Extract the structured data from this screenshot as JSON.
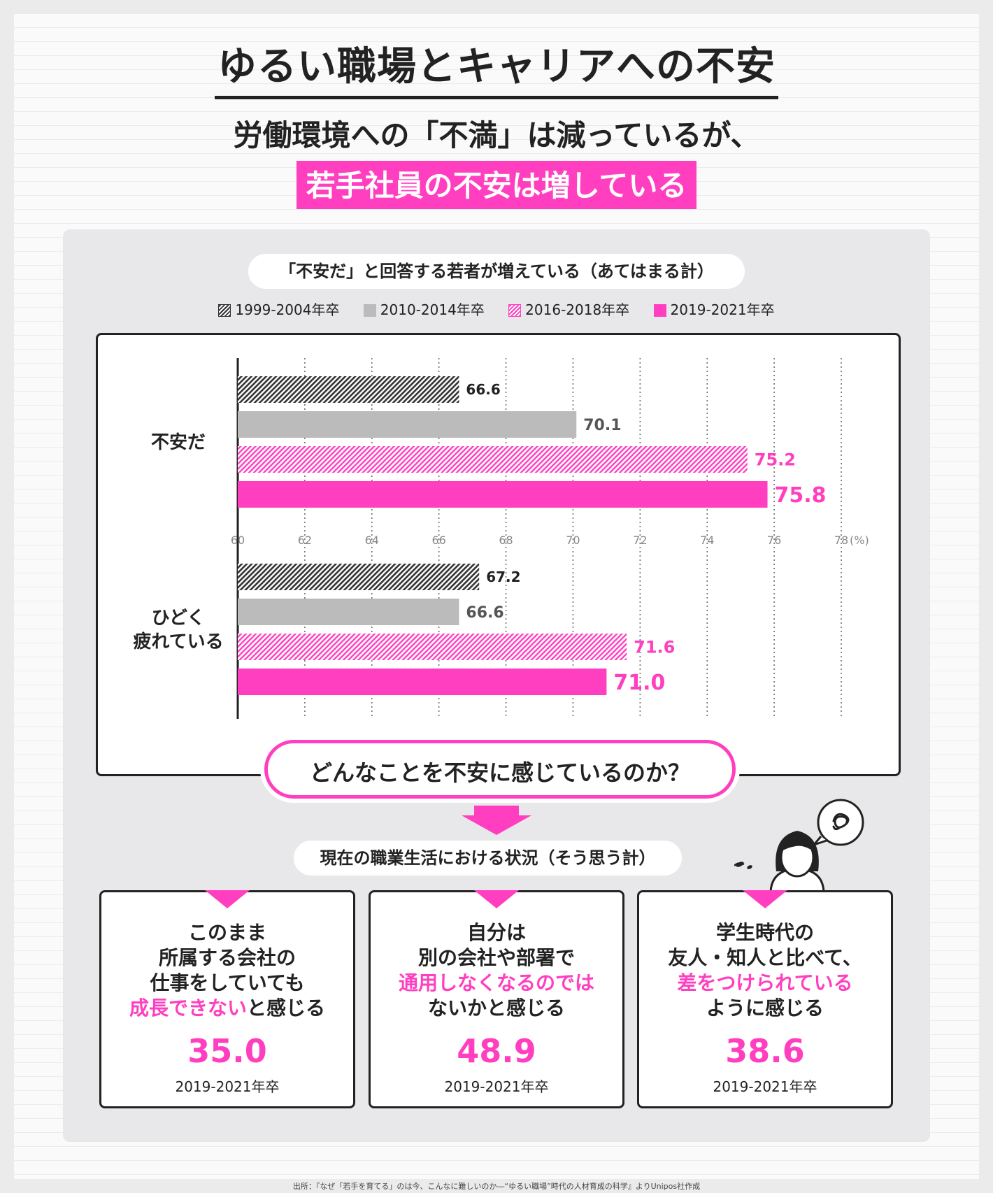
{
  "title": "ゆるい職場とキャリアへの不安",
  "subtitle_line1": "労働環境への「不満」は減っているが、",
  "subtitle_line2": "若手社員の不安は増している",
  "accent_color": "#ff3fc0",
  "chart_data": {
    "type": "bar",
    "orientation": "horizontal",
    "title": "「不安だ」と回答する若者が増えている（あてはまる計）",
    "categories": [
      "不安だ",
      "ひどく疲れている"
    ],
    "category_lines": [
      [
        "不安だ"
      ],
      [
        "ひどく",
        "疲れている"
      ]
    ],
    "series": [
      {
        "name": "1999-2004年卒",
        "values": [
          66.6,
          67.2
        ],
        "color": "#333333",
        "pattern": "hatch-dark"
      },
      {
        "name": "2010-2014年卒",
        "values": [
          70.1,
          66.6
        ],
        "color": "#bbbbbb",
        "pattern": "solid"
      },
      {
        "name": "2016-2018年卒",
        "values": [
          75.2,
          71.6
        ],
        "color": "#ff3fc0",
        "pattern": "hatch-pink"
      },
      {
        "name": "2019-2021年卒",
        "values": [
          75.8,
          71.0
        ],
        "color": "#ff3fc0",
        "pattern": "solid"
      }
    ],
    "value_labels": [
      [
        "66.6",
        "67.2"
      ],
      [
        "70.1",
        "66.6"
      ],
      [
        "75.2",
        "71.6"
      ],
      [
        "75.8",
        "71.0"
      ]
    ],
    "xlim": [
      60,
      78
    ],
    "xticks": [
      60,
      62,
      64,
      66,
      68,
      70,
      72,
      74,
      76,
      78
    ],
    "x_unit": "(%)",
    "grid": "vertical-dotted",
    "legend": "top"
  },
  "question": "どんなことを不安に感じているのか？",
  "status_heading": "現在の職業生活における状況（そう思う計）",
  "cards": [
    {
      "lines": [
        [
          {
            "t": "このまま",
            "hl": false
          }
        ],
        [
          {
            "t": "所属する会社の",
            "hl": false
          }
        ],
        [
          {
            "t": "仕事をしていても",
            "hl": false
          }
        ],
        [
          {
            "t": "成長できない",
            "hl": true
          },
          {
            "t": "と感じる",
            "hl": false
          }
        ]
      ],
      "value": "35.0",
      "period": "2019-2021年卒"
    },
    {
      "lines": [
        [
          {
            "t": "自分は",
            "hl": false
          }
        ],
        [
          {
            "t": "別の会社や部署で",
            "hl": false
          }
        ],
        [
          {
            "t": "通用しなくなるのでは",
            "hl": true
          }
        ],
        [
          {
            "t": "ないかと感じる",
            "hl": false
          }
        ]
      ],
      "value": "48.9",
      "period": "2019-2021年卒"
    },
    {
      "lines": [
        [
          {
            "t": "学生時代の",
            "hl": false
          }
        ],
        [
          {
            "t": "友人・知人と比べて、",
            "hl": false
          }
        ],
        [
          {
            "t": "差をつけられている",
            "hl": true
          }
        ],
        [
          {
            "t": "ように感じる",
            "hl": false
          }
        ]
      ],
      "value": "38.6",
      "period": "2019-2021年卒"
    }
  ],
  "source": "出所：『なぜ「若手を育てる」のは今、こんなに難しいのか―“ゆるい職場”時代の人材育成の科学』よりUnipos社作成"
}
